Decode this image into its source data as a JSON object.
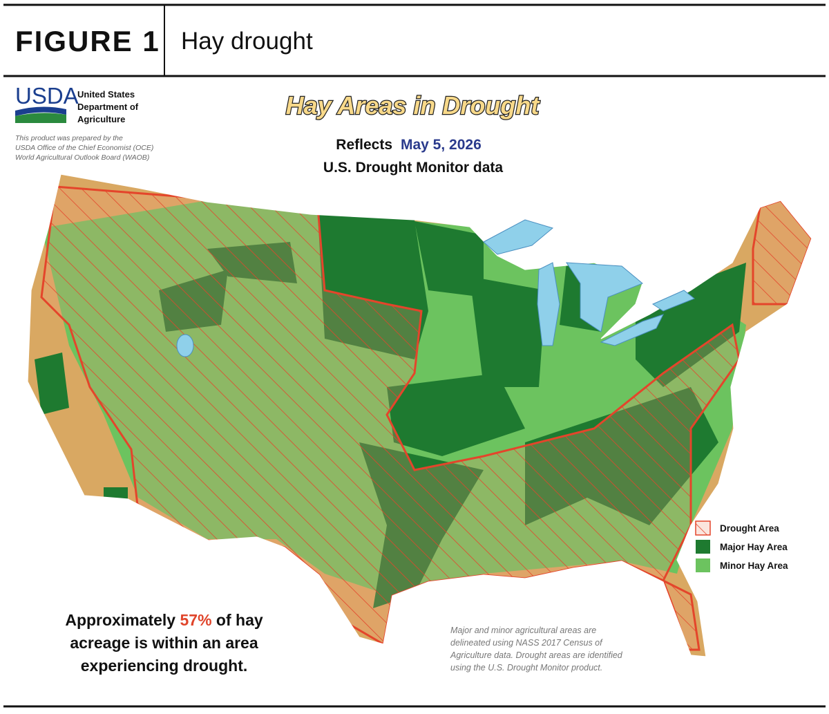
{
  "header": {
    "label": "FIGURE 1",
    "title": "Hay drought"
  },
  "logo": {
    "wordmark": "USDA",
    "agency": [
      "United States",
      "Department of",
      "Agriculture"
    ]
  },
  "credit": [
    "This product was prepared by the",
    "USDA Office of the Chief Economist (OCE)",
    "World Agricultural Outlook Board (WAOB)"
  ],
  "map": {
    "title": "Hay Areas in Drought",
    "subtitle_prefix": "Reflects",
    "date": "May 5, 2026",
    "subtitle_line2": "U.S. Drought Monitor data"
  },
  "legend": [
    "Drought Area",
    "Major Hay Area",
    "Minor Hay Area"
  ],
  "summary": {
    "before": "Approximately",
    "percent": "57%",
    "after": "of hay acreage is within an area experiencing drought."
  },
  "note": "Major and minor agricultural areas are delineated using NASS 2017 Census of Agriculture data.  Drought areas are identified using the U.S. Drought Monitor product."
}
